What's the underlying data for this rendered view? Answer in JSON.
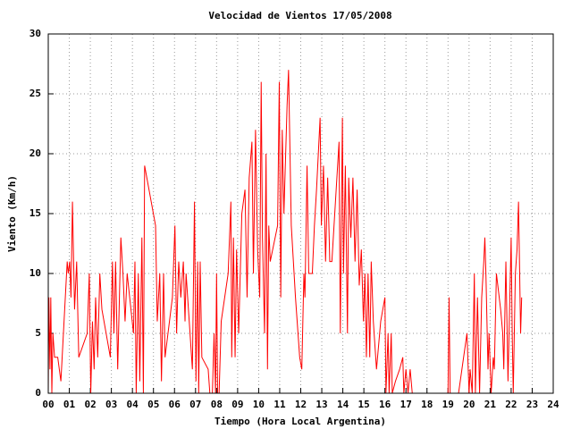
{
  "chart_data": {
    "type": "line",
    "title": "Velocidad de Vientos 17/05/2008",
    "x_label": "Tiempo (Hora Local Argentina)",
    "y_label": "Viento (Km/h)",
    "color": "#ff0000",
    "grid": true,
    "xlim": [
      0,
      24
    ],
    "ylim": [
      0,
      30
    ],
    "yticks": [
      0,
      5,
      10,
      15,
      20,
      25,
      30
    ],
    "xticks": [
      {
        "value": 0,
        "label": "00"
      },
      {
        "value": 1,
        "label": "01"
      },
      {
        "value": 2,
        "label": "02"
      },
      {
        "value": 3,
        "label": "03"
      },
      {
        "value": 4,
        "label": "04"
      },
      {
        "value": 5,
        "label": "05"
      },
      {
        "value": 6,
        "label": "06"
      },
      {
        "value": 7,
        "label": "07"
      },
      {
        "value": 8,
        "label": "08"
      },
      {
        "value": 9,
        "label": "09"
      },
      {
        "value": 10,
        "label": "10"
      },
      {
        "value": 11,
        "label": "11"
      },
      {
        "value": 12,
        "label": "12"
      },
      {
        "value": 13,
        "label": "13"
      },
      {
        "value": 14,
        "label": "14"
      },
      {
        "value": 15,
        "label": "15"
      },
      {
        "value": 16,
        "label": "16"
      },
      {
        "value": 17,
        "label": "17"
      },
      {
        "value": 18,
        "label": "18"
      },
      {
        "value": 19,
        "label": "19"
      },
      {
        "value": 20,
        "label": "20"
      },
      {
        "value": 21,
        "label": "21"
      },
      {
        "value": 22,
        "label": "22"
      },
      {
        "value": 23,
        "label": "23"
      },
      {
        "value": 24,
        "label": "24"
      }
    ],
    "x": [
      0,
      0.03,
      0.08,
      0.12,
      0.17,
      0.22,
      0.3,
      0.45,
      0.6,
      0.9,
      0.95,
      1.02,
      1.08,
      1.15,
      1.25,
      1.35,
      1.45,
      1.85,
      1.95,
      2.02,
      2.1,
      2.18,
      2.25,
      2.35,
      2.45,
      2.55,
      2.95,
      3.05,
      3.12,
      3.2,
      3.3,
      3.45,
      3.55,
      3.65,
      3.75,
      4.05,
      4.12,
      4.18,
      4.28,
      4.35,
      4.45,
      4.52,
      4.58,
      5.1,
      5.18,
      5.3,
      5.38,
      5.48,
      5.55,
      5.9,
      6.02,
      6.1,
      6.2,
      6.3,
      6.42,
      6.5,
      6.55,
      6.85,
      6.95,
      7.02,
      7.1,
      7.15,
      7.22,
      7.3,
      7.6,
      7.68,
      7.8,
      7.88,
      7.95,
      8.0,
      8.05,
      8.12,
      8.22,
      8.55,
      8.68,
      8.72,
      8.8,
      8.88,
      8.95,
      9.05,
      9.2,
      9.35,
      9.45,
      9.55,
      9.68,
      9.75,
      9.85,
      9.95,
      10.05,
      10.12,
      10.18,
      10.28,
      10.35,
      10.42,
      10.48,
      10.55,
      10.9,
      10.98,
      11.05,
      11.12,
      11.2,
      11.35,
      11.42,
      11.55,
      11.75,
      11.95,
      12.05,
      12.15,
      12.2,
      12.3,
      12.38,
      12.55,
      12.65,
      12.75,
      12.92,
      12.98,
      13.08,
      13.18,
      13.28,
      13.38,
      13.48,
      13.65,
      13.82,
      13.88,
      13.98,
      14.03,
      14.12,
      14.22,
      14.28,
      14.38,
      14.48,
      14.58,
      14.68,
      14.78,
      14.88,
      14.98,
      15.05,
      15.12,
      15.2,
      15.28,
      15.35,
      15.45,
      15.6,
      15.8,
      16.0,
      16.05,
      16.15,
      16.2,
      16.3,
      16.35,
      16.5,
      16.7,
      16.85,
      16.9,
      17.0,
      17.1,
      17.2,
      17.3,
      19.0,
      19.05,
      19.1,
      19.5,
      19.9,
      20.0,
      20.05,
      20.15,
      20.25,
      20.3,
      20.4,
      20.5,
      20.6,
      20.7,
      20.75,
      20.8,
      20.9,
      20.95,
      21.05,
      21.15,
      21.2,
      21.3,
      21.5,
      21.6,
      21.65,
      21.75,
      21.85,
      22.0,
      22.05,
      22.1,
      22.2,
      22.28,
      22.35,
      22.45,
      22.5
    ],
    "values": [
      0,
      8,
      2,
      8,
      0,
      5,
      3,
      3,
      1,
      11,
      10,
      11,
      8,
      16,
      7,
      11,
      3,
      5,
      10,
      0,
      6,
      2,
      8,
      3,
      10,
      7,
      3,
      11,
      5,
      11,
      2,
      13,
      10,
      6,
      10,
      5,
      11,
      0,
      10,
      1,
      13,
      0,
      19,
      14,
      6,
      10,
      1,
      10,
      3,
      8,
      14,
      5,
      11,
      8,
      11,
      6,
      10,
      2,
      16,
      1,
      11,
      0,
      11,
      3,
      2,
      0,
      0,
      5,
      0,
      10,
      0,
      0,
      6,
      10,
      16,
      3,
      13,
      3,
      12,
      5,
      15,
      17,
      8,
      18,
      21,
      10,
      22,
      12,
      8,
      26,
      13,
      5,
      20,
      2,
      14,
      11,
      14,
      26,
      8,
      22,
      15,
      24,
      27,
      14,
      8,
      3,
      2,
      10,
      8,
      19,
      10,
      10,
      14,
      17,
      23,
      14,
      19,
      11,
      18,
      11,
      11,
      16,
      21,
      5,
      23,
      10,
      19,
      5,
      18,
      13,
      18,
      11,
      17,
      9,
      12,
      6,
      10,
      3,
      10,
      3,
      11,
      6,
      2,
      6,
      8,
      0,
      5,
      0,
      5,
      0,
      1,
      2,
      3,
      0,
      2,
      0,
      2,
      0,
      0,
      8,
      0,
      0,
      5,
      0,
      2,
      0,
      10,
      0,
      8,
      0,
      8,
      11,
      13,
      10,
      2,
      5,
      0,
      3,
      2,
      10,
      7,
      5,
      2,
      11,
      1,
      13,
      5,
      0,
      10,
      12,
      16,
      5,
      8
    ]
  }
}
